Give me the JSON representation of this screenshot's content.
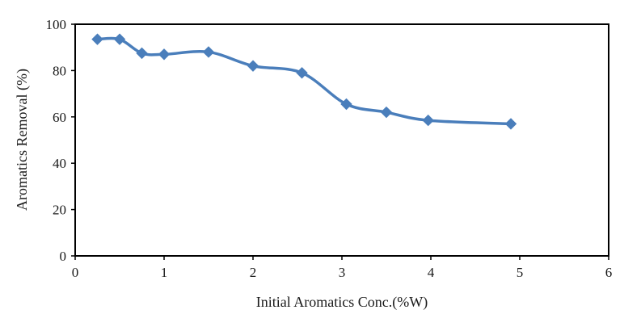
{
  "chart_data": {
    "type": "line",
    "xlabel": "Initial  Aromatics Conc.(%W)",
    "ylabel": "Aromatics Removal (%)",
    "xlim": [
      0,
      6
    ],
    "ylim": [
      0,
      100
    ],
    "x_ticks": [
      0,
      1,
      2,
      3,
      4,
      5,
      6
    ],
    "y_ticks": [
      0,
      20,
      40,
      60,
      80,
      100
    ],
    "x_tick_labels": [
      "0",
      "1",
      "2",
      "3",
      "4",
      "5",
      "6"
    ],
    "y_tick_labels": [
      "0",
      "20",
      "40",
      "60",
      "80",
      "100"
    ],
    "grid": false,
    "legend": "none",
    "series": [
      {
        "color": "#4a7ebb",
        "marker": "diamond",
        "smooth": true,
        "x": [
          0.25,
          0.5,
          0.75,
          1.0,
          1.5,
          2.0,
          2.55,
          3.05,
          3.5,
          3.97,
          4.9
        ],
        "y": [
          93.5,
          93.5,
          87.5,
          87.0,
          88.0,
          82.0,
          79.0,
          65.5,
          62.0,
          58.5,
          57.0
        ]
      }
    ]
  }
}
